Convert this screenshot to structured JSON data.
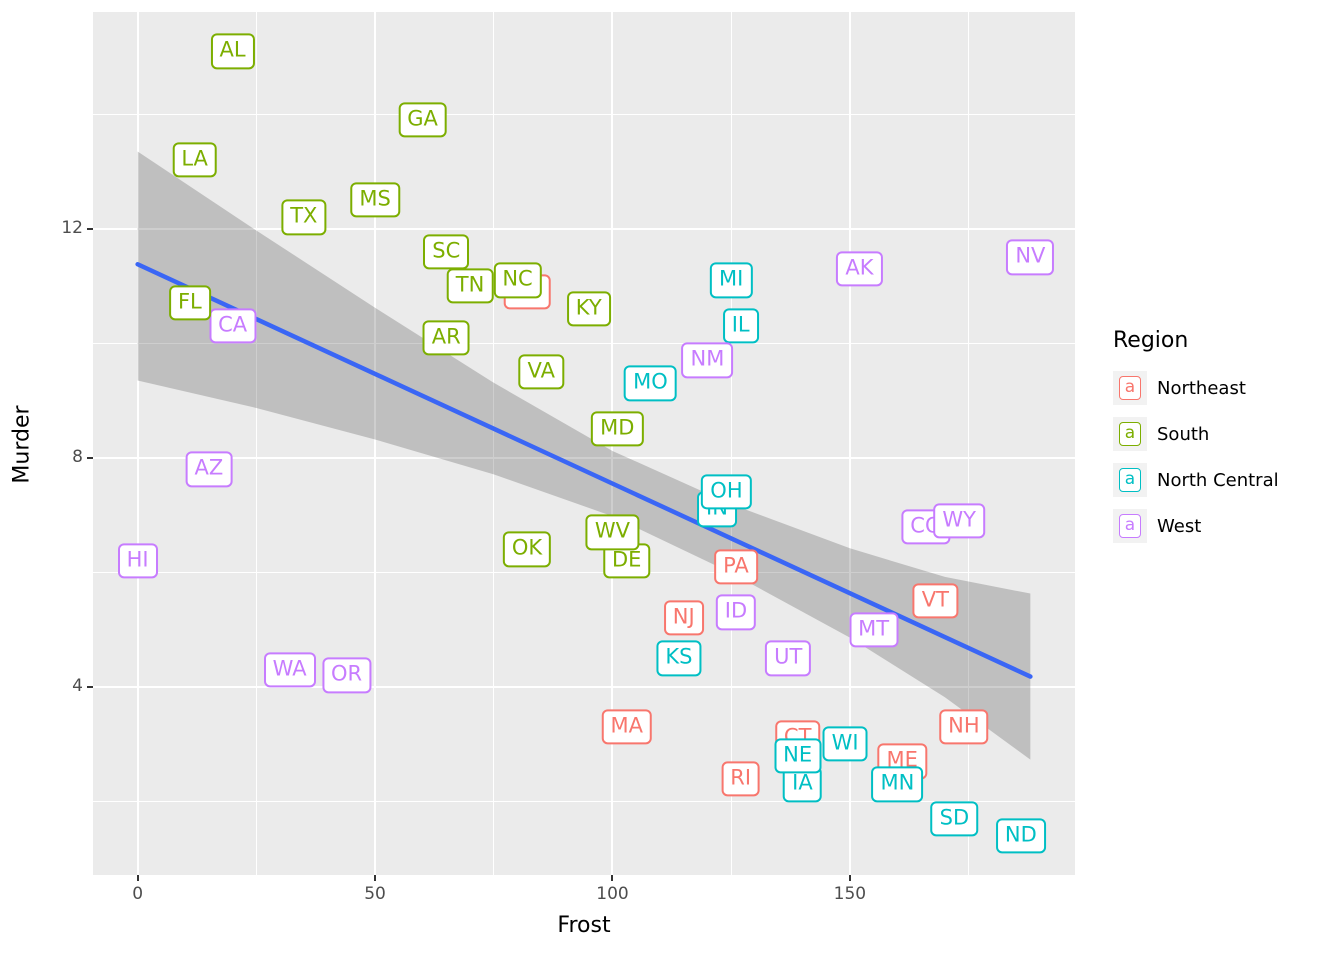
{
  "chart_data": {
    "type": "scatter",
    "geom": "label",
    "title": "",
    "xlabel": "Frost",
    "ylabel": "Murder",
    "x_domain": [
      -9.4,
      197.4
    ],
    "y_domain": [
      0.715,
      15.785
    ],
    "x_ticks": [
      0,
      50,
      100,
      150
    ],
    "x_minor": [
      25,
      75,
      125,
      175
    ],
    "y_ticks": [
      4,
      8,
      12
    ],
    "y_minor": [
      2,
      6,
      10,
      14
    ],
    "region_colors": {
      "Northeast": "#F8766D",
      "South": "#7CAE00",
      "North Central": "#00BFC4",
      "West": "#C77CFF"
    },
    "legend": {
      "title": "Region",
      "key_char": "a",
      "items": [
        {
          "label": "Northeast",
          "color": "#F8766D"
        },
        {
          "label": "South",
          "color": "#7CAE00"
        },
        {
          "label": "North Central",
          "color": "#00BFC4"
        },
        {
          "label": "West",
          "color": "#C77CFF"
        }
      ]
    },
    "points": [
      {
        "abbr": "AL",
        "frost": 20,
        "murder": 15.1,
        "region": "South"
      },
      {
        "abbr": "AK",
        "frost": 152,
        "murder": 11.3,
        "region": "West"
      },
      {
        "abbr": "AZ",
        "frost": 15,
        "murder": 7.8,
        "region": "West"
      },
      {
        "abbr": "AR",
        "frost": 65,
        "murder": 10.1,
        "region": "South"
      },
      {
        "abbr": "CA",
        "frost": 20,
        "murder": 10.3,
        "region": "West"
      },
      {
        "abbr": "CO",
        "frost": 166,
        "murder": 6.8,
        "region": "West"
      },
      {
        "abbr": "CT",
        "frost": 139,
        "murder": 3.1,
        "region": "Northeast"
      },
      {
        "abbr": "DE",
        "frost": 103,
        "murder": 6.2,
        "region": "South"
      },
      {
        "abbr": "FL",
        "frost": 11,
        "murder": 10.7,
        "region": "South"
      },
      {
        "abbr": "GA",
        "frost": 60,
        "murder": 13.9,
        "region": "South"
      },
      {
        "abbr": "HI",
        "frost": 0,
        "murder": 6.2,
        "region": "West"
      },
      {
        "abbr": "ID",
        "frost": 126,
        "murder": 5.3,
        "region": "West"
      },
      {
        "abbr": "IL",
        "frost": 127,
        "murder": 10.3,
        "region": "North Central"
      },
      {
        "abbr": "IN",
        "frost": 122,
        "murder": 7.1,
        "region": "North Central"
      },
      {
        "abbr": "IA",
        "frost": 140,
        "murder": 2.3,
        "region": "North Central"
      },
      {
        "abbr": "KS",
        "frost": 114,
        "murder": 4.5,
        "region": "North Central"
      },
      {
        "abbr": "KY",
        "frost": 95,
        "murder": 10.6,
        "region": "South"
      },
      {
        "abbr": "LA",
        "frost": 12,
        "murder": 13.2,
        "region": "South"
      },
      {
        "abbr": "ME",
        "frost": 161,
        "murder": 2.7,
        "region": "Northeast"
      },
      {
        "abbr": "MD",
        "frost": 101,
        "murder": 8.5,
        "region": "South"
      },
      {
        "abbr": "MA",
        "frost": 103,
        "murder": 3.3,
        "region": "Northeast"
      },
      {
        "abbr": "MI",
        "frost": 125,
        "murder": 11.1,
        "region": "North Central"
      },
      {
        "abbr": "MN",
        "frost": 160,
        "murder": 2.3,
        "region": "North Central"
      },
      {
        "abbr": "MS",
        "frost": 50,
        "murder": 12.5,
        "region": "South"
      },
      {
        "abbr": "MO",
        "frost": 108,
        "murder": 9.3,
        "region": "North Central"
      },
      {
        "abbr": "MT",
        "frost": 155,
        "murder": 5.0,
        "region": "West"
      },
      {
        "abbr": "NE",
        "frost": 139,
        "murder": 2.8,
        "region": "North Central"
      },
      {
        "abbr": "NV",
        "frost": 188,
        "murder": 11.5,
        "region": "West"
      },
      {
        "abbr": "NH",
        "frost": 174,
        "murder": 3.3,
        "region": "Northeast"
      },
      {
        "abbr": "NJ",
        "frost": 115,
        "murder": 5.2,
        "region": "Northeast"
      },
      {
        "abbr": "NM",
        "frost": 120,
        "murder": 9.7,
        "region": "West"
      },
      {
        "abbr": "NY",
        "frost": 82,
        "murder": 10.9,
        "region": "Northeast"
      },
      {
        "abbr": "NC",
        "frost": 80,
        "murder": 11.1,
        "region": "South"
      },
      {
        "abbr": "ND",
        "frost": 186,
        "murder": 1.4,
        "region": "North Central"
      },
      {
        "abbr": "OH",
        "frost": 124,
        "murder": 7.4,
        "region": "North Central"
      },
      {
        "abbr": "OK",
        "frost": 82,
        "murder": 6.4,
        "region": "South"
      },
      {
        "abbr": "OR",
        "frost": 44,
        "murder": 4.2,
        "region": "West"
      },
      {
        "abbr": "PA",
        "frost": 126,
        "murder": 6.1,
        "region": "Northeast"
      },
      {
        "abbr": "RI",
        "frost": 127,
        "murder": 2.4,
        "region": "Northeast"
      },
      {
        "abbr": "SC",
        "frost": 65,
        "murder": 11.6,
        "region": "South"
      },
      {
        "abbr": "SD",
        "frost": 172,
        "murder": 1.7,
        "region": "North Central"
      },
      {
        "abbr": "TN",
        "frost": 70,
        "murder": 11.0,
        "region": "South"
      },
      {
        "abbr": "TX",
        "frost": 35,
        "murder": 12.2,
        "region": "South"
      },
      {
        "abbr": "UT",
        "frost": 137,
        "murder": 4.5,
        "region": "West"
      },
      {
        "abbr": "VT",
        "frost": 168,
        "murder": 5.5,
        "region": "Northeast"
      },
      {
        "abbr": "VA",
        "frost": 85,
        "murder": 9.5,
        "region": "South"
      },
      {
        "abbr": "WA",
        "frost": 32,
        "murder": 4.3,
        "region": "West"
      },
      {
        "abbr": "WV",
        "frost": 100,
        "murder": 6.7,
        "region": "South"
      },
      {
        "abbr": "WI",
        "frost": 149,
        "murder": 3.0,
        "region": "North Central"
      },
      {
        "abbr": "WY",
        "frost": 173,
        "murder": 6.9,
        "region": "West"
      }
    ],
    "regression": {
      "color": "#3A66F5",
      "x0": 0,
      "y0": 11.38,
      "x1": 188,
      "y1": 4.18
    },
    "ribbon": {
      "fill": "rgba(80,80,80,0.28)",
      "x": [
        0,
        25,
        50,
        75,
        100,
        125,
        150,
        170,
        188
      ],
      "upper": [
        13.35,
        11.97,
        10.62,
        9.31,
        8.12,
        7.19,
        6.42,
        5.92,
        5.63
      ],
      "lower": [
        9.35,
        8.87,
        8.32,
        7.71,
        6.98,
        5.99,
        4.86,
        3.82,
        2.73
      ]
    },
    "panel_background": "#EBEBEB"
  }
}
